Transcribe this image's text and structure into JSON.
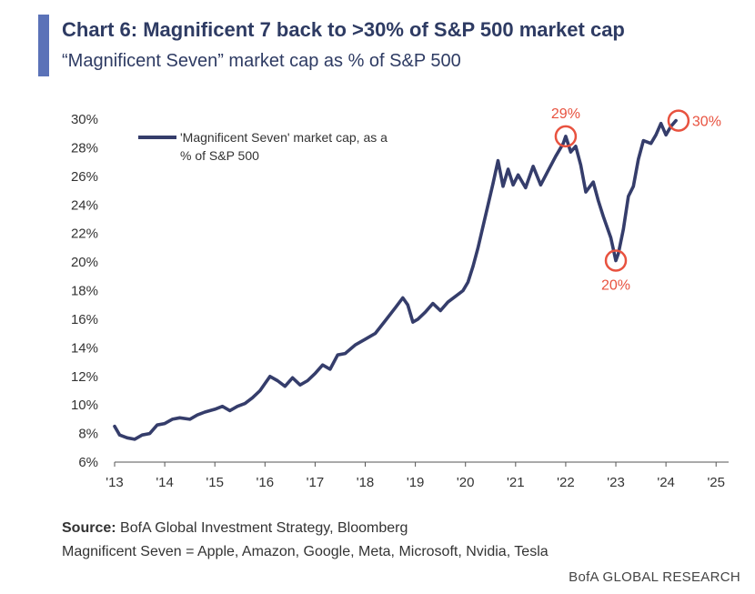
{
  "header": {
    "title": "Chart 6: Magnificent 7 back to >30% of S&P 500 market cap",
    "subtitle": "“Magnificent Seven” market cap as % of S&P 500"
  },
  "chart_data": {
    "type": "line",
    "legend": {
      "line1": "'Magnificent Seven' market cap, as a",
      "line2": "% of S&P 500",
      "placement": "top-left"
    },
    "x_ticks": [
      "'13",
      "'14",
      "'15",
      "'16",
      "'17",
      "'18",
      "'19",
      "'20",
      "'21",
      "'22",
      "'23",
      "'24",
      "'25"
    ],
    "y_ticks": [
      "30%",
      "28%",
      "26%",
      "24%",
      "22%",
      "20%",
      "18%",
      "16%",
      "14%",
      "12%",
      "10%",
      "8%",
      "6%"
    ],
    "xlim": [
      2013,
      2025.25
    ],
    "ylim": [
      6,
      30
    ],
    "grid": false,
    "series": [
      {
        "name": "'Magnificent Seven' market cap, as a % of S&P 500",
        "color": "#353d6b",
        "points": [
          [
            2013.0,
            8.5
          ],
          [
            2013.1,
            7.9
          ],
          [
            2013.25,
            7.7
          ],
          [
            2013.4,
            7.6
          ],
          [
            2013.55,
            7.9
          ],
          [
            2013.7,
            8.0
          ],
          [
            2013.85,
            8.6
          ],
          [
            2014.0,
            8.7
          ],
          [
            2014.15,
            9.0
          ],
          [
            2014.3,
            9.1
          ],
          [
            2014.5,
            9.0
          ],
          [
            2014.65,
            9.3
          ],
          [
            2014.8,
            9.5
          ],
          [
            2015.0,
            9.7
          ],
          [
            2015.15,
            9.9
          ],
          [
            2015.3,
            9.6
          ],
          [
            2015.45,
            9.9
          ],
          [
            2015.6,
            10.1
          ],
          [
            2015.75,
            10.5
          ],
          [
            2015.9,
            11.0
          ],
          [
            2016.0,
            11.5
          ],
          [
            2016.1,
            12.0
          ],
          [
            2016.25,
            11.7
          ],
          [
            2016.4,
            11.3
          ],
          [
            2016.55,
            11.9
          ],
          [
            2016.7,
            11.4
          ],
          [
            2016.85,
            11.7
          ],
          [
            2017.0,
            12.2
          ],
          [
            2017.15,
            12.8
          ],
          [
            2017.3,
            12.5
          ],
          [
            2017.45,
            13.5
          ],
          [
            2017.6,
            13.6
          ],
          [
            2017.8,
            14.2
          ],
          [
            2018.0,
            14.6
          ],
          [
            2018.2,
            15.0
          ],
          [
            2018.4,
            15.9
          ],
          [
            2018.6,
            16.8
          ],
          [
            2018.75,
            17.5
          ],
          [
            2018.85,
            17.0
          ],
          [
            2018.95,
            15.8
          ],
          [
            2019.05,
            16.0
          ],
          [
            2019.2,
            16.5
          ],
          [
            2019.35,
            17.1
          ],
          [
            2019.5,
            16.6
          ],
          [
            2019.65,
            17.2
          ],
          [
            2019.8,
            17.6
          ],
          [
            2019.95,
            18.0
          ],
          [
            2020.05,
            18.6
          ],
          [
            2020.15,
            19.7
          ],
          [
            2020.25,
            21.0
          ],
          [
            2020.35,
            22.5
          ],
          [
            2020.45,
            24.0
          ],
          [
            2020.55,
            25.5
          ],
          [
            2020.65,
            27.1
          ],
          [
            2020.75,
            25.3
          ],
          [
            2020.85,
            26.5
          ],
          [
            2020.95,
            25.4
          ],
          [
            2021.05,
            26.1
          ],
          [
            2021.2,
            25.2
          ],
          [
            2021.35,
            26.7
          ],
          [
            2021.5,
            25.4
          ],
          [
            2021.65,
            26.4
          ],
          [
            2021.8,
            27.4
          ],
          [
            2021.95,
            28.3
          ],
          [
            2022.0,
            28.8
          ],
          [
            2022.1,
            27.7
          ],
          [
            2022.2,
            28.1
          ],
          [
            2022.3,
            26.8
          ],
          [
            2022.4,
            24.9
          ],
          [
            2022.55,
            25.6
          ],
          [
            2022.65,
            24.3
          ],
          [
            2022.75,
            23.2
          ],
          [
            2022.9,
            21.7
          ],
          [
            2023.0,
            20.1
          ],
          [
            2023.05,
            20.6
          ],
          [
            2023.15,
            22.3
          ],
          [
            2023.25,
            24.6
          ],
          [
            2023.35,
            25.3
          ],
          [
            2023.45,
            27.2
          ],
          [
            2023.55,
            28.5
          ],
          [
            2023.7,
            28.3
          ],
          [
            2023.8,
            28.9
          ],
          [
            2023.9,
            29.7
          ],
          [
            2024.0,
            28.9
          ],
          [
            2024.1,
            29.5
          ],
          [
            2024.2,
            29.9
          ]
        ]
      }
    ],
    "annotations": [
      {
        "label": "29%",
        "x": 2022.0,
        "y": 28.8,
        "label_pos": "above"
      },
      {
        "label": "20%",
        "x": 2023.0,
        "y": 20.1,
        "label_pos": "below"
      },
      {
        "label": "30%",
        "x": 2024.25,
        "y": 29.9,
        "label_pos": "right"
      }
    ],
    "annotation_color": "#e8523f"
  },
  "footer": {
    "source_label": "Source:",
    "source_text": " BofA Global Investment Strategy, Bloomberg",
    "note": "Magnificent Seven = Apple, Amazon, Google, Meta, Microsoft, Nvidia, Tesla",
    "brand": "BofA GLOBAL RESEARCH"
  }
}
